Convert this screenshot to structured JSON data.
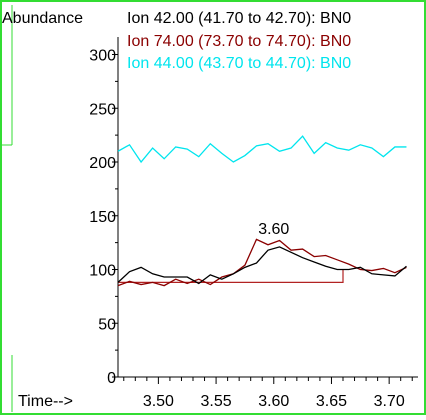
{
  "chart_data": {
    "type": "line",
    "ylabel": "Abundance",
    "xlabel": "Time-->",
    "xlim": [
      3.465,
      3.725
    ],
    "ylim": [
      0,
      320
    ],
    "x_ticks": [
      "3.50",
      "3.55",
      "3.60",
      "3.65",
      "3.70"
    ],
    "y_ticks": [
      "0",
      "50",
      "100",
      "150",
      "200",
      "250",
      "300"
    ],
    "grid": false,
    "legend": "top",
    "peak_label": "3.60",
    "peak_label_x": 3.6,
    "peak_label_y": 133,
    "baseline": {
      "x": [
        3.465,
        3.66,
        3.66
      ],
      "y": [
        88,
        88,
        100
      ]
    },
    "series": [
      {
        "name": "Ion  42.00 (41.70 to 42.70): BN0",
        "color": "#000000",
        "x": [
          3.465,
          3.475,
          3.485,
          3.495,
          3.505,
          3.515,
          3.525,
          3.535,
          3.545,
          3.555,
          3.565,
          3.575,
          3.585,
          3.595,
          3.605,
          3.615,
          3.625,
          3.635,
          3.645,
          3.655,
          3.665,
          3.675,
          3.685,
          3.695,
          3.705,
          3.715
        ],
        "y": [
          88,
          98,
          102,
          96,
          93,
          93,
          93,
          87,
          95,
          91,
          96,
          102,
          106,
          118,
          121,
          116,
          111,
          107,
          103,
          100,
          100,
          102,
          96,
          95,
          94,
          103
        ]
      },
      {
        "name": "Ion  74.00 (73.70 to 74.70): BN0",
        "color": "#8b0000",
        "x": [
          3.465,
          3.475,
          3.485,
          3.495,
          3.505,
          3.515,
          3.525,
          3.535,
          3.545,
          3.555,
          3.565,
          3.575,
          3.585,
          3.595,
          3.605,
          3.615,
          3.625,
          3.635,
          3.645,
          3.655,
          3.665,
          3.675,
          3.685,
          3.695,
          3.705,
          3.715
        ],
        "y": [
          85,
          89,
          86,
          88,
          85,
          91,
          87,
          91,
          86,
          93,
          96,
          104,
          128,
          123,
          127,
          118,
          119,
          112,
          113,
          109,
          105,
          100,
          99,
          101,
          97,
          102
        ]
      },
      {
        "name": "Ion  44.00 (43.70 to 44.70): BN0",
        "color": "#00e5ee",
        "x": [
          3.465,
          3.475,
          3.485,
          3.495,
          3.505,
          3.515,
          3.525,
          3.535,
          3.545,
          3.555,
          3.565,
          3.575,
          3.585,
          3.595,
          3.605,
          3.615,
          3.625,
          3.635,
          3.645,
          3.655,
          3.665,
          3.675,
          3.685,
          3.695,
          3.705,
          3.715
        ],
        "y": [
          210,
          216,
          200,
          213,
          203,
          214,
          212,
          205,
          217,
          208,
          200,
          206,
          215,
          217,
          210,
          213,
          224,
          208,
          218,
          213,
          211,
          216,
          213,
          205,
          214,
          214
        ]
      }
    ]
  }
}
